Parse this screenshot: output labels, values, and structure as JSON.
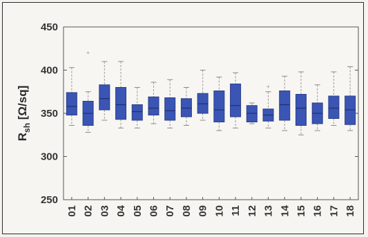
{
  "chart_data": {
    "type": "box",
    "ylabel_main": "R",
    "ylabel_sub": "sh",
    "ylabel_unit": " [Ω/sq]",
    "ylim": [
      250,
      450
    ],
    "yticks": [
      250,
      300,
      350,
      400,
      450
    ],
    "grid": false,
    "box_color": "#3a55b4",
    "categories": [
      "01",
      "02",
      "03",
      "04",
      "05",
      "06",
      "07",
      "08",
      "09",
      "10",
      "11",
      "12",
      "13",
      "14",
      "15",
      "16",
      "17",
      "18"
    ],
    "boxes": [
      {
        "whisker_low": 336,
        "q1": 348,
        "median": 358,
        "q3": 374,
        "whisker_high": 403,
        "outliers": []
      },
      {
        "whisker_low": 328,
        "q1": 336,
        "median": 350,
        "q3": 364,
        "whisker_high": 375,
        "outliers": [
          420
        ]
      },
      {
        "whisker_low": 342,
        "q1": 354,
        "median": 367,
        "q3": 383,
        "whisker_high": 410,
        "outliers": []
      },
      {
        "whisker_low": 333,
        "q1": 343,
        "median": 360,
        "q3": 380,
        "whisker_high": 410,
        "outliers": []
      },
      {
        "whisker_low": 333,
        "q1": 342,
        "median": 352,
        "q3": 360,
        "whisker_high": 380,
        "outliers": []
      },
      {
        "whisker_low": 338,
        "q1": 348,
        "median": 356,
        "q3": 369,
        "whisker_high": 386,
        "outliers": []
      },
      {
        "whisker_low": 333,
        "q1": 342,
        "median": 353,
        "q3": 368,
        "whisker_high": 389,
        "outliers": []
      },
      {
        "whisker_low": 336,
        "q1": 346,
        "median": 356,
        "q3": 367,
        "whisker_high": 380,
        "outliers": []
      },
      {
        "whisker_low": 342,
        "q1": 350,
        "median": 361,
        "q3": 373,
        "whisker_high": 400,
        "outliers": []
      },
      {
        "whisker_low": 330,
        "q1": 340,
        "median": 354,
        "q3": 376,
        "whisker_high": 392,
        "outliers": []
      },
      {
        "whisker_low": 333,
        "q1": 346,
        "median": 359,
        "q3": 384,
        "whisker_high": 397,
        "outliers": []
      },
      {
        "whisker_low": 338,
        "q1": 340,
        "median": 350,
        "q3": 359,
        "whisker_high": 362,
        "outliers": []
      },
      {
        "whisker_low": 333,
        "q1": 341,
        "median": 348,
        "q3": 355,
        "whisker_high": 375,
        "outliers": [
          381
        ]
      },
      {
        "whisker_low": 330,
        "q1": 342,
        "median": 360,
        "q3": 376,
        "whisker_high": 393,
        "outliers": []
      },
      {
        "whisker_low": 325,
        "q1": 336,
        "median": 356,
        "q3": 372,
        "whisker_high": 398,
        "outliers": []
      },
      {
        "whisker_low": 330,
        "q1": 338,
        "median": 350,
        "q3": 362,
        "whisker_high": 383,
        "outliers": []
      },
      {
        "whisker_low": 336,
        "q1": 344,
        "median": 356,
        "q3": 370,
        "whisker_high": 398,
        "outliers": []
      },
      {
        "whisker_low": 330,
        "q1": 337,
        "median": 354,
        "q3": 370,
        "whisker_high": 404,
        "outliers": []
      }
    ]
  }
}
